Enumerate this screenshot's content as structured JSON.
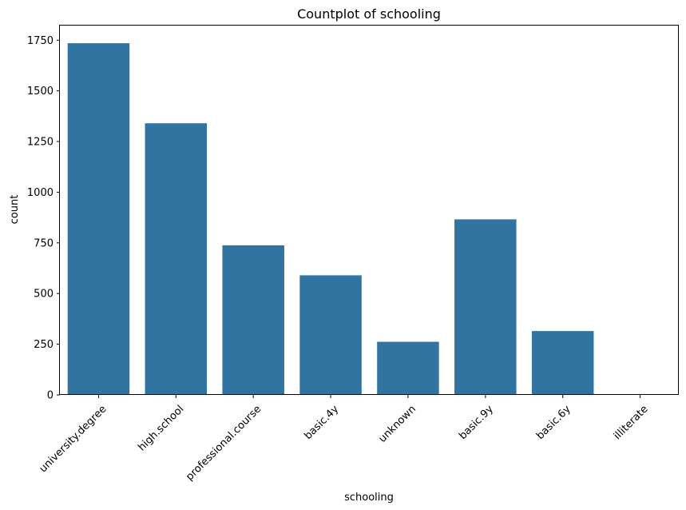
{
  "chart_data": {
    "type": "bar",
    "title": "Countplot of schooling",
    "xlabel": "schooling",
    "ylabel": "count",
    "categories": [
      "university.degree",
      "high.school",
      "professional.course",
      "basic.4y",
      "unknown",
      "basic.9y",
      "basic.6y",
      "illiterate"
    ],
    "values": [
      1735,
      1340,
      738,
      590,
      262,
      866,
      315,
      1
    ],
    "ylim": [
      0,
      1822
    ],
    "yticks": [
      0,
      250,
      500,
      750,
      1000,
      1250,
      1500,
      1750
    ],
    "grid": false,
    "bar_color": "#3274a1"
  }
}
